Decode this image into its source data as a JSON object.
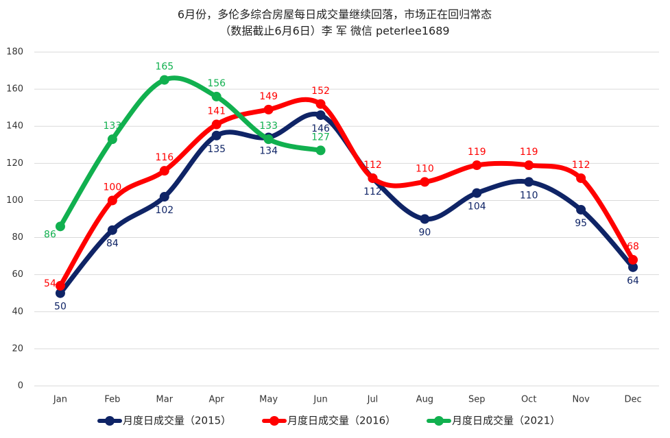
{
  "chart_data": {
    "type": "line",
    "title": "6月份，多伦多综合房屋每日成交量继续回落，市场正在回归常态",
    "subtitle": "（数据截止6月6日）李 军  微信 peterlee1689",
    "categories": [
      "Jan",
      "Feb",
      "Mar",
      "Apr",
      "May",
      "Jun",
      "Jul",
      "Aug",
      "Sep",
      "Oct",
      "Nov",
      "Dec"
    ],
    "series": [
      {
        "name": "月度日成交量（2015）",
        "color": "#0f2466",
        "values": [
          50,
          84,
          102,
          135,
          134,
          146,
          112,
          90,
          104,
          110,
          95,
          64
        ]
      },
      {
        "name": "月度日成交量（2016）",
        "color": "#ff0000",
        "values": [
          54,
          100,
          116,
          141,
          149,
          152,
          112,
          110,
          119,
          119,
          112,
          68
        ]
      },
      {
        "name": "月度日成交量（2021）",
        "color": "#11b04f",
        "values": [
          86,
          133,
          165,
          156,
          133,
          127,
          null,
          null,
          null,
          null,
          null,
          null
        ]
      }
    ],
    "ylim": [
      0,
      180
    ],
    "yticks": [
      0,
      20,
      40,
      60,
      80,
      100,
      120,
      140,
      160,
      180
    ],
    "grid": true,
    "legend": "bottom"
  }
}
